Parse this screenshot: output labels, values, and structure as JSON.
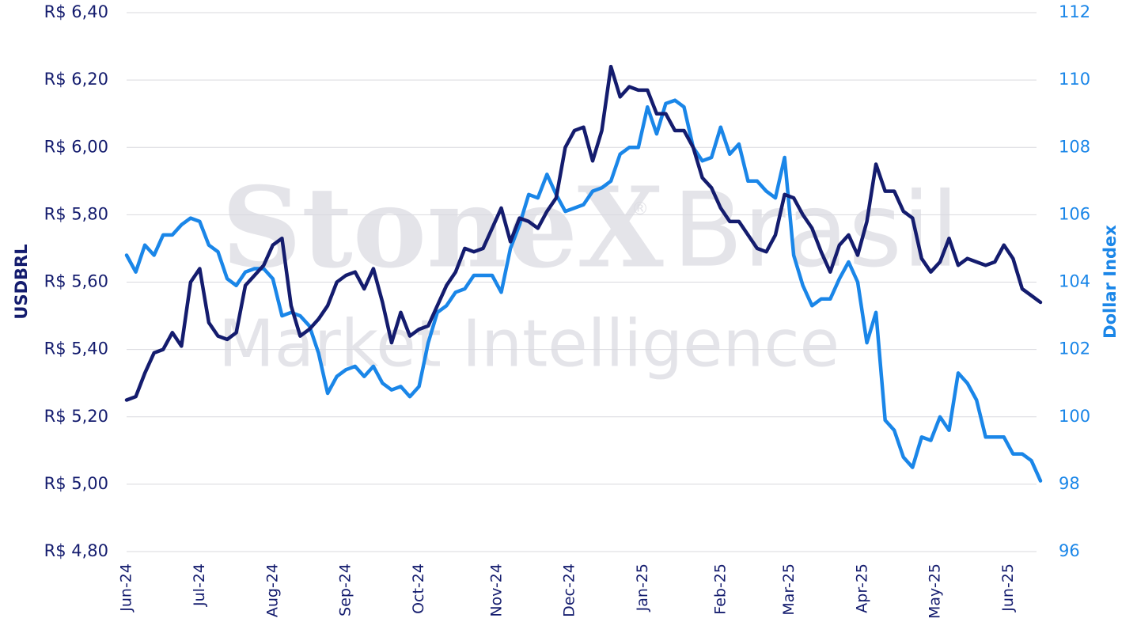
{
  "chart_data": {
    "type": "line",
    "ylabel": "USDBRL",
    "y2label": "Dollar Index",
    "watermark": [
      "StoneX",
      "®",
      "Brasil",
      "Market Intelligence"
    ],
    "xlim": [
      0,
      100
    ],
    "xticks": [
      {
        "value": 0,
        "label": "Jun-24"
      },
      {
        "value": 8,
        "label": "Jul-24"
      },
      {
        "value": 16,
        "label": "Aug-24"
      },
      {
        "value": 24,
        "label": "Sep-24"
      },
      {
        "value": 32,
        "label": "Oct-24"
      },
      {
        "value": 40.5,
        "label": "Nov-24"
      },
      {
        "value": 48.5,
        "label": "Dec-24"
      },
      {
        "value": 56.5,
        "label": "Jan-25"
      },
      {
        "value": 65,
        "label": "Feb-25"
      },
      {
        "value": 72.5,
        "label": "Mar-25"
      },
      {
        "value": 80.5,
        "label": "Apr-25"
      },
      {
        "value": 88.5,
        "label": "May-25"
      },
      {
        "value": 96.5,
        "label": "Jun-25"
      }
    ],
    "ylim": [
      4.8,
      6.4
    ],
    "yticks": [
      {
        "value": 4.8,
        "label": "R$ 4,80"
      },
      {
        "value": 5.0,
        "label": "R$ 5,00"
      },
      {
        "value": 5.2,
        "label": "R$ 5,20"
      },
      {
        "value": 5.4,
        "label": "R$ 5,40"
      },
      {
        "value": 5.6,
        "label": "R$ 5,60"
      },
      {
        "value": 5.8,
        "label": "R$ 5,80"
      },
      {
        "value": 6.0,
        "label": "R$ 6,00"
      },
      {
        "value": 6.2,
        "label": "R$ 6,20"
      },
      {
        "value": 6.4,
        "label": "R$ 6,40"
      }
    ],
    "y2lim": [
      96,
      112
    ],
    "y2ticks": [
      96,
      98,
      100,
      102,
      104,
      106,
      108,
      110,
      112
    ],
    "grid": true,
    "series": [
      {
        "color": "#141c6e",
        "axis": "y",
        "values": [
          5.25,
          5.26,
          5.33,
          5.39,
          5.4,
          5.45,
          5.41,
          5.6,
          5.64,
          5.48,
          5.44,
          5.43,
          5.45,
          5.59,
          5.62,
          5.65,
          5.71,
          5.73,
          5.53,
          5.44,
          5.46,
          5.49,
          5.53,
          5.6,
          5.62,
          5.63,
          5.58,
          5.64,
          5.54,
          5.42,
          5.51,
          5.44,
          5.46,
          5.47,
          5.53,
          5.59,
          5.63,
          5.7,
          5.69,
          5.7,
          5.76,
          5.82,
          5.72,
          5.79,
          5.78,
          5.76,
          5.81,
          5.85,
          6.0,
          6.05,
          6.06,
          5.96,
          6.05,
          6.24,
          6.15,
          6.18,
          6.17,
          6.17,
          6.1,
          6.1,
          6.05,
          6.05,
          6.0,
          5.91,
          5.88,
          5.82,
          5.78,
          5.78,
          5.74,
          5.7,
          5.69,
          5.74,
          5.86,
          5.85,
          5.8,
          5.76,
          5.69,
          5.63,
          5.71,
          5.74,
          5.68,
          5.78,
          5.95,
          5.87,
          5.87,
          5.81,
          5.79,
          5.67,
          5.63,
          5.66,
          5.73,
          5.65,
          5.67,
          5.66,
          5.65,
          5.66,
          5.71,
          5.67,
          5.58,
          5.56,
          5.54
        ]
      },
      {
        "color": "#1a86e8",
        "axis": "y2",
        "values": [
          104.8,
          104.3,
          105.1,
          104.8,
          105.4,
          105.4,
          105.7,
          105.9,
          105.8,
          105.1,
          104.9,
          104.1,
          103.9,
          104.3,
          104.4,
          104.4,
          104.1,
          103.0,
          103.1,
          103.0,
          102.7,
          101.9,
          100.7,
          101.2,
          101.4,
          101.5,
          101.2,
          101.5,
          101.0,
          100.8,
          100.9,
          100.6,
          100.9,
          102.2,
          103.1,
          103.3,
          103.7,
          103.8,
          104.2,
          104.2,
          104.2,
          103.7,
          105.0,
          105.7,
          106.6,
          106.5,
          107.2,
          106.6,
          106.1,
          106.2,
          106.3,
          106.7,
          106.8,
          107.0,
          107.8,
          108.0,
          108.0,
          109.2,
          108.4,
          109.3,
          109.4,
          109.2,
          108.0,
          107.6,
          107.7,
          108.6,
          107.8,
          108.1,
          107.0,
          107.0,
          106.7,
          106.5,
          107.7,
          104.8,
          103.9,
          103.3,
          103.5,
          103.5,
          104.1,
          104.6,
          104.0,
          102.2,
          103.1,
          99.9,
          99.6,
          98.8,
          98.5,
          99.4,
          99.3,
          100.0,
          99.6,
          101.3,
          101.0,
          100.5,
          99.4,
          99.4,
          99.4,
          98.9,
          98.9,
          98.7,
          98.1
        ]
      }
    ]
  }
}
